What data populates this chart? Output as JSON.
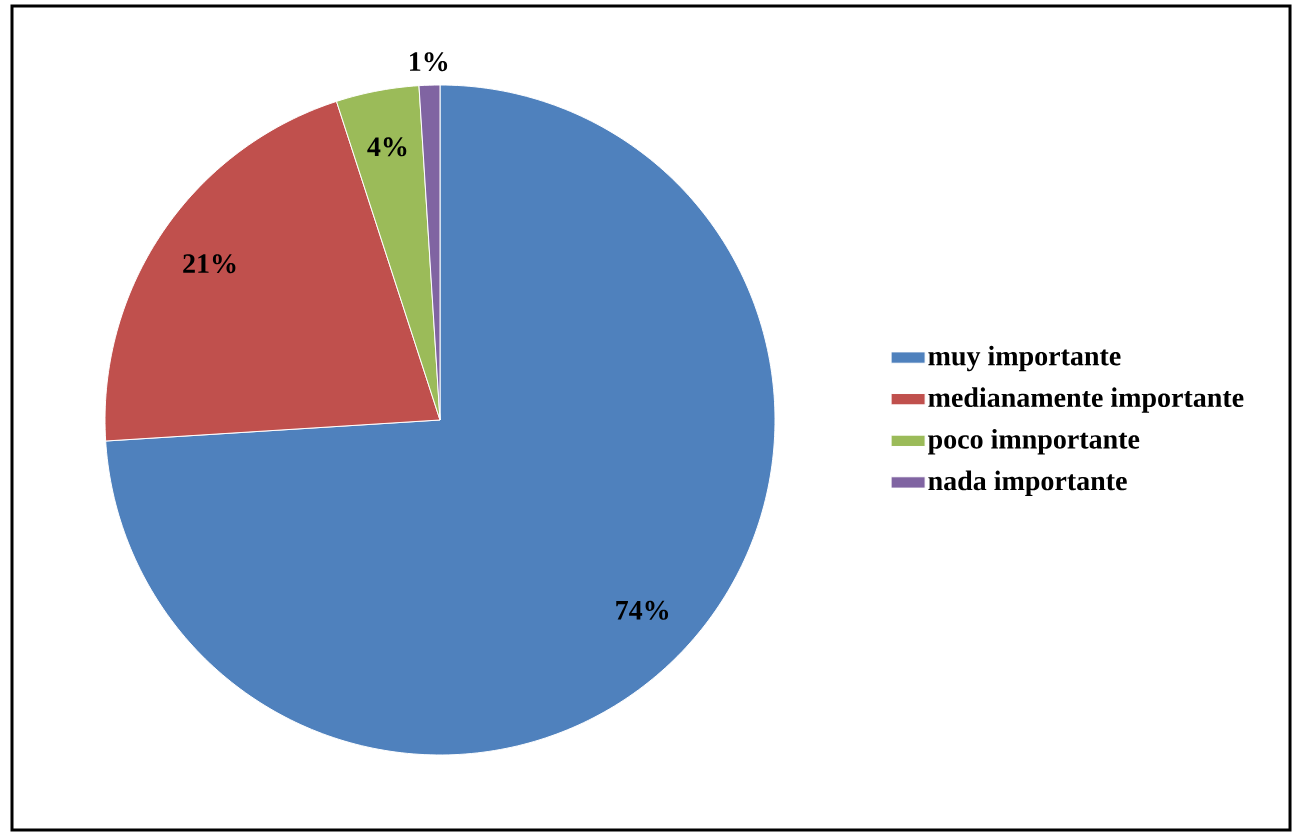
{
  "chart_data": {
    "type": "pie",
    "categories": [
      "muy importante",
      "medianamente importante",
      "poco imnportante",
      "nada importante"
    ],
    "values": [
      74,
      21,
      4,
      1
    ],
    "colors": [
      "#4f81bd",
      "#c0504d",
      "#9bbb59",
      "#8064a2"
    ],
    "value_labels": [
      "74%",
      "21%",
      "4%",
      "1%"
    ],
    "legend": "right"
  }
}
